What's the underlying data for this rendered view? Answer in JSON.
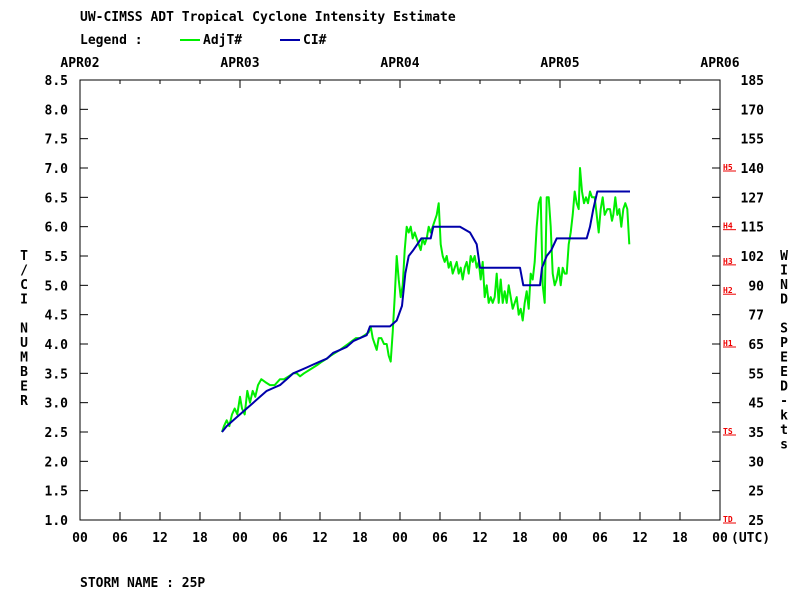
{
  "chart_data": {
    "type": "line",
    "title": "UW-CIMSS ADT Tropical Cyclone Intensity Estimate",
    "legend_label": "Legend :",
    "legend": [
      {
        "name": "AdjT#",
        "color": "#00ee00"
      },
      {
        "name": "CI#",
        "color": "#0000aa"
      }
    ],
    "x_units_label": "(UTC)",
    "top_ticks": [
      "APR02",
      "APR03",
      "APR04",
      "APR05",
      "APR06"
    ],
    "bottom_ticks": [
      "00",
      "06",
      "12",
      "18",
      "00",
      "06",
      "12",
      "18",
      "00",
      "06",
      "12",
      "18",
      "00",
      "06",
      "12",
      "18",
      "00"
    ],
    "xlim_hours": [
      0,
      96
    ],
    "ylabel_left": "T/CI NUMBER",
    "ylim": [
      1.0,
      8.5
    ],
    "left_ticks": [
      "1.0",
      "1.5",
      "2.0",
      "2.5",
      "3.0",
      "3.5",
      "4.0",
      "4.5",
      "5.0",
      "5.5",
      "6.0",
      "6.5",
      "7.0",
      "7.5",
      "8.0",
      "8.5"
    ],
    "ylabel_right": "WIND SPEED-kts",
    "right_ticks": [
      "25",
      "25",
      "30",
      "35",
      "45",
      "55",
      "65",
      "77",
      "90",
      "102",
      "115",
      "127",
      "140",
      "155",
      "170",
      "185"
    ],
    "category_markers": [
      {
        "label": "TD",
        "value": 1.0
      },
      {
        "label": "TS",
        "value": 2.5
      },
      {
        "label": "H1",
        "value": 4.0
      },
      {
        "label": "H2",
        "value": 4.9
      },
      {
        "label": "H3",
        "value": 5.4
      },
      {
        "label": "H4",
        "value": 6.0
      },
      {
        "label": "H5",
        "value": 7.0
      }
    ],
    "grid": false,
    "legend_position": "top-left",
    "series": [
      {
        "name": "AdjT#",
        "color": "#00ee00",
        "points": [
          [
            21.3,
            2.5
          ],
          [
            21.6,
            2.6
          ],
          [
            22.0,
            2.7
          ],
          [
            22.4,
            2.6
          ],
          [
            22.8,
            2.8
          ],
          [
            23.2,
            2.9
          ],
          [
            23.6,
            2.8
          ],
          [
            24.0,
            3.1
          ],
          [
            24.3,
            2.9
          ],
          [
            24.7,
            2.8
          ],
          [
            25.1,
            3.2
          ],
          [
            25.5,
            3.0
          ],
          [
            25.9,
            3.2
          ],
          [
            26.3,
            3.1
          ],
          [
            26.7,
            3.3
          ],
          [
            27.2,
            3.4
          ],
          [
            27.8,
            3.35
          ],
          [
            28.5,
            3.3
          ],
          [
            29.2,
            3.3
          ],
          [
            30.0,
            3.4
          ],
          [
            30.6,
            3.4
          ],
          [
            31.3,
            3.45
          ],
          [
            32.0,
            3.5
          ],
          [
            32.5,
            3.5
          ],
          [
            33.0,
            3.45
          ],
          [
            33.6,
            3.5
          ],
          [
            34.3,
            3.55
          ],
          [
            35.0,
            3.6
          ],
          [
            35.7,
            3.65
          ],
          [
            36.3,
            3.7
          ],
          [
            37.0,
            3.75
          ],
          [
            37.6,
            3.8
          ],
          [
            38.3,
            3.85
          ],
          [
            39.0,
            3.9
          ],
          [
            39.6,
            3.95
          ],
          [
            40.2,
            4.0
          ],
          [
            40.8,
            4.05
          ],
          [
            41.4,
            4.1
          ],
          [
            42.0,
            4.1
          ],
          [
            42.7,
            4.15
          ],
          [
            43.3,
            4.2
          ],
          [
            43.6,
            4.3
          ],
          [
            43.9,
            4.1
          ],
          [
            44.2,
            4.0
          ],
          [
            44.5,
            3.9
          ],
          [
            44.8,
            4.1
          ],
          [
            45.2,
            4.1
          ],
          [
            45.6,
            4.0
          ],
          [
            46.0,
            4.0
          ],
          [
            46.3,
            3.8
          ],
          [
            46.6,
            3.7
          ],
          [
            46.9,
            4.2
          ],
          [
            47.2,
            4.8
          ],
          [
            47.5,
            5.5
          ],
          [
            47.8,
            5.1
          ],
          [
            48.1,
            4.8
          ],
          [
            48.4,
            5.0
          ],
          [
            48.7,
            5.6
          ],
          [
            49.0,
            6.0
          ],
          [
            49.3,
            5.9
          ],
          [
            49.6,
            6.0
          ],
          [
            49.9,
            5.8
          ],
          [
            50.2,
            5.9
          ],
          [
            50.5,
            5.8
          ],
          [
            50.8,
            5.7
          ],
          [
            51.1,
            5.6
          ],
          [
            51.4,
            5.8
          ],
          [
            51.7,
            5.7
          ],
          [
            52.0,
            5.8
          ],
          [
            52.3,
            6.0
          ],
          [
            52.6,
            5.9
          ],
          [
            52.9,
            6.0
          ],
          [
            53.2,
            6.1
          ],
          [
            53.5,
            6.2
          ],
          [
            53.8,
            6.4
          ],
          [
            54.1,
            5.7
          ],
          [
            54.4,
            5.5
          ],
          [
            54.7,
            5.4
          ],
          [
            55.0,
            5.5
          ],
          [
            55.3,
            5.3
          ],
          [
            55.6,
            5.4
          ],
          [
            55.9,
            5.2
          ],
          [
            56.2,
            5.3
          ],
          [
            56.5,
            5.4
          ],
          [
            56.8,
            5.2
          ],
          [
            57.1,
            5.3
          ],
          [
            57.4,
            5.1
          ],
          [
            57.7,
            5.3
          ],
          [
            58.0,
            5.4
          ],
          [
            58.3,
            5.2
          ],
          [
            58.6,
            5.5
          ],
          [
            58.9,
            5.4
          ],
          [
            59.2,
            5.5
          ],
          [
            59.5,
            5.3
          ],
          [
            59.8,
            5.4
          ],
          [
            60.1,
            5.1
          ],
          [
            60.4,
            5.4
          ],
          [
            60.7,
            4.8
          ],
          [
            61.0,
            5.0
          ],
          [
            61.3,
            4.7
          ],
          [
            61.6,
            4.8
          ],
          [
            61.9,
            4.7
          ],
          [
            62.2,
            4.8
          ],
          [
            62.5,
            5.2
          ],
          [
            62.8,
            4.7
          ],
          [
            63.1,
            5.1
          ],
          [
            63.4,
            4.7
          ],
          [
            63.7,
            4.9
          ],
          [
            64.0,
            4.7
          ],
          [
            64.3,
            5.0
          ],
          [
            64.6,
            4.8
          ],
          [
            64.9,
            4.6
          ],
          [
            65.2,
            4.7
          ],
          [
            65.5,
            4.8
          ],
          [
            65.8,
            4.5
          ],
          [
            66.1,
            4.6
          ],
          [
            66.4,
            4.4
          ],
          [
            66.7,
            4.7
          ],
          [
            67.0,
            4.9
          ],
          [
            67.3,
            4.6
          ],
          [
            67.6,
            5.2
          ],
          [
            67.9,
            5.1
          ],
          [
            68.2,
            5.4
          ],
          [
            68.5,
            6.0
          ],
          [
            68.8,
            6.4
          ],
          [
            69.1,
            6.5
          ],
          [
            69.4,
            5.0
          ],
          [
            69.7,
            4.7
          ],
          [
            70.0,
            6.5
          ],
          [
            70.3,
            6.5
          ],
          [
            70.6,
            6.0
          ],
          [
            70.9,
            5.2
          ],
          [
            71.2,
            5.0
          ],
          [
            71.5,
            5.1
          ],
          [
            71.8,
            5.3
          ],
          [
            72.1,
            5.0
          ],
          [
            72.4,
            5.3
          ],
          [
            72.7,
            5.2
          ],
          [
            73.0,
            5.2
          ],
          [
            73.3,
            5.7
          ],
          [
            73.6,
            5.9
          ],
          [
            73.9,
            6.2
          ],
          [
            74.2,
            6.6
          ],
          [
            74.5,
            6.4
          ],
          [
            74.8,
            6.3
          ],
          [
            75.0,
            7.0
          ],
          [
            75.3,
            6.6
          ],
          [
            75.6,
            6.4
          ],
          [
            75.9,
            6.5
          ],
          [
            76.2,
            6.4
          ],
          [
            76.5,
            6.6
          ],
          [
            76.8,
            6.5
          ],
          [
            77.2,
            6.5
          ],
          [
            77.5,
            6.2
          ],
          [
            77.8,
            5.9
          ],
          [
            78.1,
            6.3
          ],
          [
            78.4,
            6.5
          ],
          [
            78.7,
            6.2
          ],
          [
            79.1,
            6.3
          ],
          [
            79.5,
            6.3
          ],
          [
            79.8,
            6.1
          ],
          [
            80.0,
            6.2
          ],
          [
            80.3,
            6.5
          ],
          [
            80.6,
            6.2
          ],
          [
            80.9,
            6.3
          ],
          [
            81.2,
            6.0
          ],
          [
            81.5,
            6.3
          ],
          [
            81.8,
            6.4
          ],
          [
            82.1,
            6.3
          ],
          [
            82.4,
            5.7
          ]
        ]
      },
      {
        "name": "CI#",
        "color": "#0000aa",
        "points": [
          [
            21.3,
            2.5
          ],
          [
            22.0,
            2.6
          ],
          [
            23.0,
            2.7
          ],
          [
            24.0,
            2.8
          ],
          [
            25.0,
            2.9
          ],
          [
            26.0,
            3.0
          ],
          [
            27.0,
            3.1
          ],
          [
            28.0,
            3.2
          ],
          [
            29.0,
            3.25
          ],
          [
            30.0,
            3.3
          ],
          [
            31.0,
            3.4
          ],
          [
            32.0,
            3.5
          ],
          [
            33.0,
            3.55
          ],
          [
            34.0,
            3.6
          ],
          [
            35.0,
            3.65
          ],
          [
            36.0,
            3.7
          ],
          [
            37.0,
            3.75
          ],
          [
            38.0,
            3.85
          ],
          [
            39.0,
            3.9
          ],
          [
            40.0,
            3.95
          ],
          [
            41.0,
            4.05
          ],
          [
            42.0,
            4.1
          ],
          [
            43.0,
            4.15
          ],
          [
            43.5,
            4.3
          ],
          [
            45.0,
            4.3
          ],
          [
            46.5,
            4.3
          ],
          [
            47.5,
            4.4
          ],
          [
            48.3,
            4.65
          ],
          [
            48.8,
            5.2
          ],
          [
            49.3,
            5.5
          ],
          [
            50.0,
            5.6
          ],
          [
            50.6,
            5.7
          ],
          [
            51.2,
            5.8
          ],
          [
            52.6,
            5.8
          ],
          [
            53.0,
            6.0
          ],
          [
            57.0,
            6.0
          ],
          [
            58.5,
            5.9
          ],
          [
            59.5,
            5.7
          ],
          [
            60.0,
            5.3
          ],
          [
            61.0,
            5.3
          ],
          [
            66.0,
            5.3
          ],
          [
            66.5,
            5.0
          ],
          [
            69.0,
            5.0
          ],
          [
            69.3,
            5.3
          ],
          [
            70.0,
            5.5
          ],
          [
            70.7,
            5.6
          ],
          [
            71.5,
            5.8
          ],
          [
            76.0,
            5.8
          ],
          [
            76.5,
            6.0
          ],
          [
            77.0,
            6.3
          ],
          [
            77.6,
            6.6
          ],
          [
            82.0,
            6.6
          ],
          [
            82.5,
            6.6
          ]
        ]
      }
    ]
  },
  "storm_label": "STORM NAME : 25P"
}
